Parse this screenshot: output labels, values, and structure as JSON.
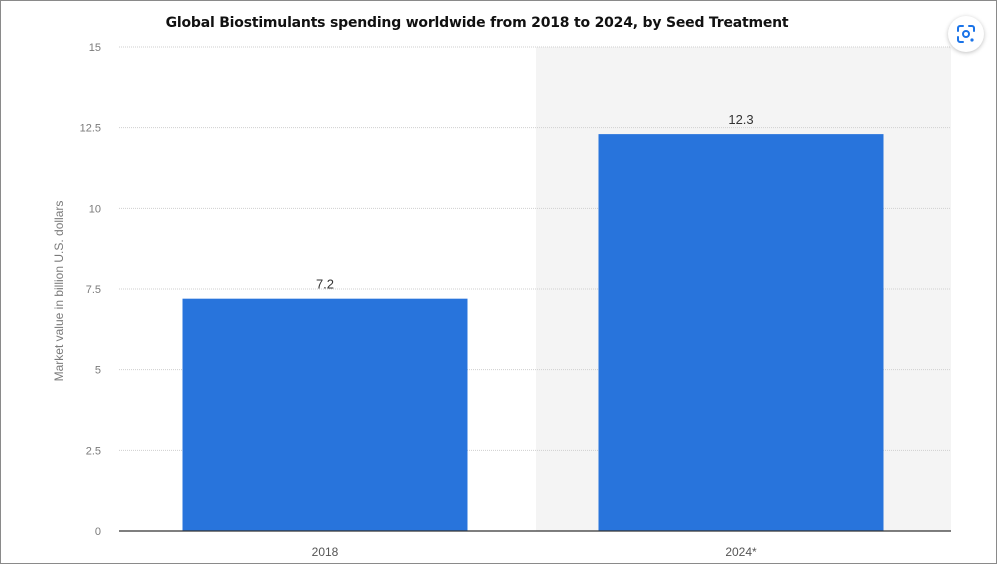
{
  "chart_data": {
    "type": "bar",
    "title": "Global Biostimulants spending worldwide from 2018 to 2024, by Seed Treatment",
    "ylabel": "Market value in billion U.S. dollars",
    "xlabel": "",
    "categories": [
      "2018",
      "2024*"
    ],
    "values": [
      7.2,
      12.3
    ],
    "data_labels": [
      "7.2",
      "12.3"
    ],
    "ylim": [
      0,
      15
    ],
    "yticks": [
      "0",
      "2.5",
      "5",
      "7.5",
      "10",
      "12.5",
      "15"
    ],
    "grid": true,
    "highlighted_category": "2024*",
    "colors": {
      "bar": "#2874dc",
      "grid": "#cfcfcf",
      "axis": "#333333",
      "tick_text": "#7a7a7a",
      "highlight_band": "#f4f4f4"
    }
  },
  "toolbar": {
    "lens_icon": "google-lens-icon"
  }
}
